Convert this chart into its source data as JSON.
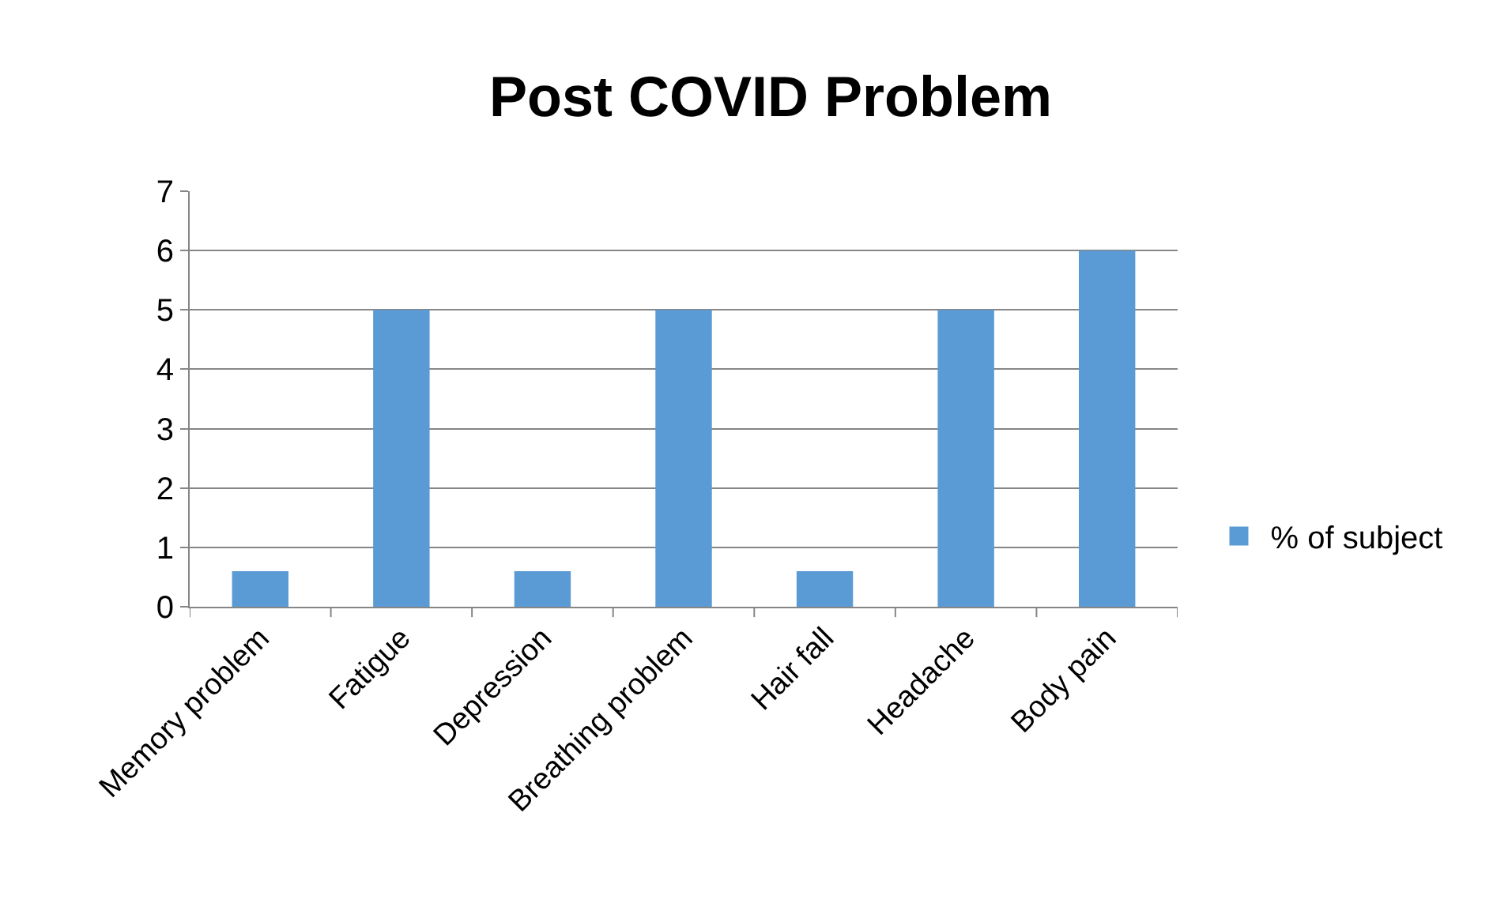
{
  "chart_data": {
    "type": "bar",
    "title": "Post COVID Problem",
    "categories": [
      "Memory problem",
      "Fatigue",
      "Depression",
      "Breathing problem",
      "Hair fall",
      "Headache",
      "Body pain"
    ],
    "series": [
      {
        "name": "% of subject",
        "color": "#5b9bd5",
        "values": [
          0.6,
          5,
          0.6,
          5,
          0.6,
          5,
          6
        ]
      }
    ],
    "ylim": [
      0,
      7
    ],
    "yticks": [
      0,
      1,
      2,
      3,
      4,
      5,
      6,
      7
    ],
    "grid": "y",
    "legend": "right"
  }
}
